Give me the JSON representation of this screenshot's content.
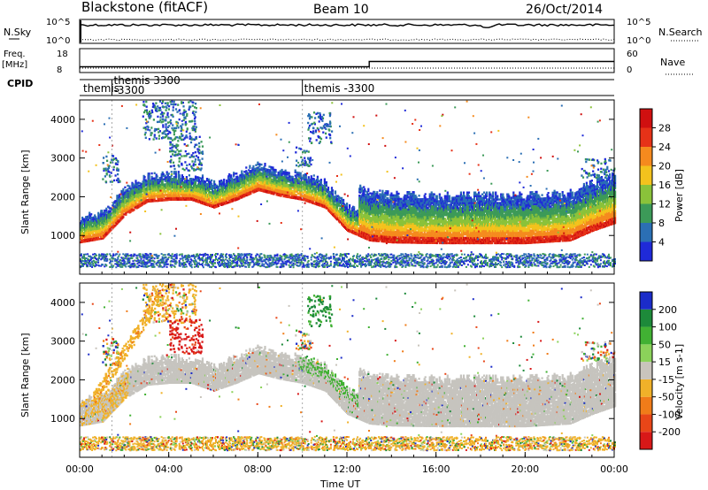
{
  "header": {
    "station": "Blackstone (fitACF)",
    "beam": "Beam 10",
    "date": "26/Oct/2014"
  },
  "strips": {
    "nsky_label": "N.Sky",
    "nsky_ticks": [
      "10^5",
      "10^0"
    ],
    "nsearch_label": "N.Search",
    "nsearch_ticks": [
      "10^5",
      "10^0"
    ],
    "freq_label": "Freq.",
    "freq_unit": "[MHz]",
    "freq_ticks": [
      "18",
      "8"
    ],
    "nave_label": "Nave",
    "nave_ticks": [
      "60",
      "0"
    ],
    "cpid_label": "CPID",
    "cpid_entries": [
      {
        "label": "themis",
        "hour": 0.0
      },
      {
        "label": "themis 3300",
        "hour": 1.45
      },
      {
        "label": "-3300",
        "hour": 1.45
      },
      {
        "label": "themis -3300",
        "hour": 10.0
      }
    ],
    "freq_step": [
      {
        "hour": 0.0,
        "mhz": 10.2
      },
      {
        "hour": 13.0,
        "mhz": 10.2
      },
      {
        "hour": 13.0,
        "mhz": 12.6
      },
      {
        "hour": 24.0,
        "mhz": 12.6
      }
    ]
  },
  "chart_data": [
    {
      "type": "heatmap",
      "name": "power",
      "ylabel": "Slant Range [km]",
      "ylim": [
        0,
        4500
      ],
      "xlim": [
        0,
        24
      ],
      "yticks": [
        "1000",
        "2000",
        "3000",
        "4000"
      ],
      "colorbar_label": "Power [dB]",
      "colorbar_ticks": [
        "4",
        "8",
        "12",
        "16",
        "20",
        "24",
        "28"
      ],
      "colorbar_range": [
        0,
        30
      ],
      "colors": [
        "#1f2ad8",
        "#2b6fb4",
        "#3c9a58",
        "#8ac23a",
        "#f3c21d",
        "#f58a1e",
        "#e63218",
        "#d01010"
      ],
      "ionospheric_band_centre_km": [
        [
          0,
          1000
        ],
        [
          1,
          1100
        ],
        [
          2,
          1700
        ],
        [
          3,
          2050
        ],
        [
          4,
          2100
        ],
        [
          5,
          2100
        ],
        [
          6,
          1900
        ],
        [
          7,
          2100
        ],
        [
          8,
          2350
        ],
        [
          9,
          2200
        ],
        [
          10,
          2100
        ],
        [
          11,
          1900
        ],
        [
          12,
          1300
        ],
        [
          13,
          1050
        ],
        [
          14,
          1000
        ],
        [
          16,
          980
        ],
        [
          18,
          980
        ],
        [
          20,
          980
        ],
        [
          22,
          1050
        ],
        [
          23,
          1300
        ],
        [
          24,
          1500
        ]
      ]
    },
    {
      "type": "heatmap",
      "name": "velocity",
      "ylabel": "Slant Range [km]",
      "ylim": [
        0,
        4500
      ],
      "xlim": [
        0,
        24
      ],
      "yticks": [
        "1000",
        "2000",
        "3000",
        "4000"
      ],
      "xticks": [
        "00:00",
        "04:00",
        "08:00",
        "12:00",
        "16:00",
        "20:00",
        "00:00"
      ],
      "xlabel": "Time UT",
      "colorbar_label": "Velocity [m s-1]",
      "colorbar_ticks": [
        "200",
        "100",
        "50",
        "15",
        "-15",
        "-50",
        "-100",
        "-200"
      ],
      "colorbar_range": [
        -250,
        250
      ],
      "colors": [
        "#1b2cc9",
        "#1d8a3a",
        "#41b133",
        "#8bd25a",
        "#c9c4bc",
        "#f0b129",
        "#f07c19",
        "#e84618",
        "#d81818"
      ],
      "ground_scatter_color": "#c6c4bf"
    }
  ]
}
